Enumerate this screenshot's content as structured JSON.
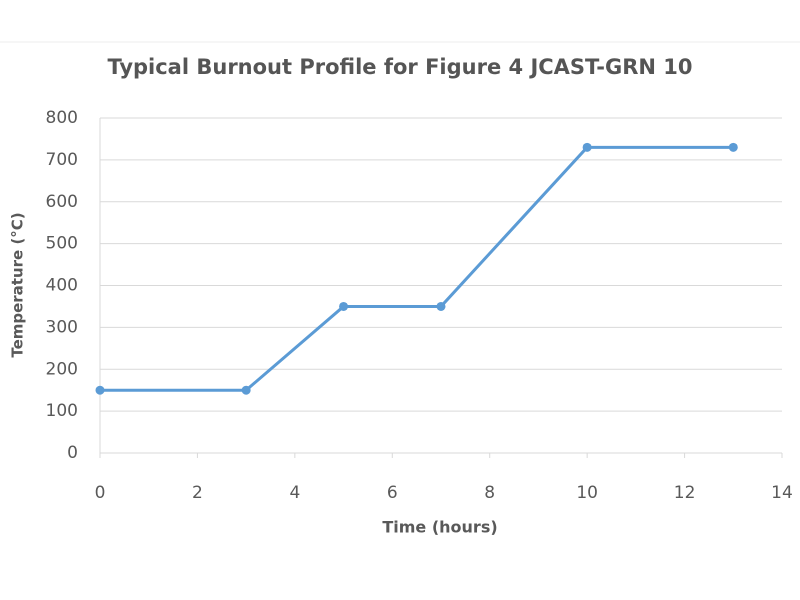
{
  "chart_data": {
    "type": "line",
    "title": "Typical Burnout Profile for Figure 4 JCAST-GRN 10",
    "x_label": "Time (hours)",
    "y_label": "Temperature (°C)",
    "x": [
      0,
      3,
      5,
      7,
      10,
      13
    ],
    "values": [
      150,
      150,
      350,
      350,
      730,
      730
    ],
    "color": "#5b9bd5",
    "xlim": [
      0,
      14
    ],
    "xticks": [
      0,
      2,
      4,
      6,
      8,
      10,
      12,
      14
    ],
    "ylim": [
      0,
      800
    ],
    "yticks": [
      0,
      100,
      200,
      300,
      400,
      500,
      600,
      700,
      800
    ],
    "grid": true
  }
}
